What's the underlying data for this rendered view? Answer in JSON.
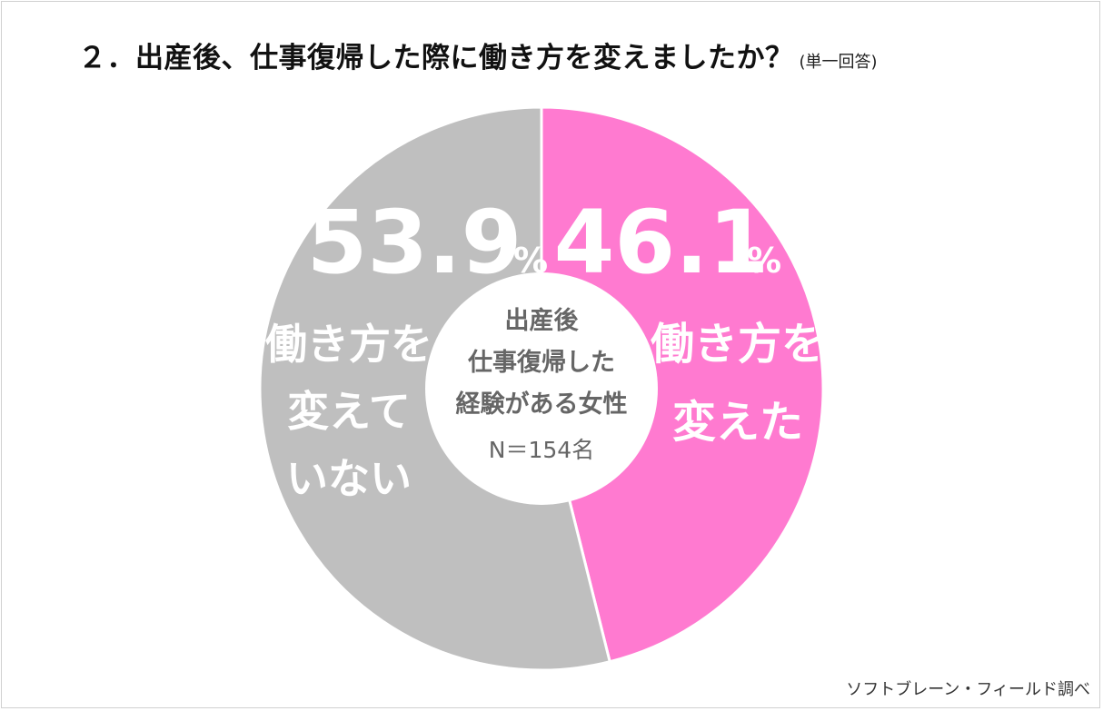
{
  "title": {
    "main": "２．出産後、仕事復帰した際に働き方を変えましたか？",
    "note": "(単一回答)"
  },
  "credit": "ソフトブレーン・フィールド調べ",
  "chart_data": {
    "type": "pie",
    "donut": true,
    "slices": [
      {
        "value": 46.1,
        "value_text": "46.1",
        "unit": "%",
        "label_lines": [
          "働き方を",
          "変えた"
        ],
        "color": "#ff7ad0"
      },
      {
        "value": 53.9,
        "value_text": "53.9",
        "unit": "%",
        "label_lines": [
          "働き方を",
          "変えて",
          "いない"
        ],
        "color": "#bfbfbf"
      }
    ],
    "center": {
      "lines": [
        "出産後",
        "仕事復帰した",
        "経験がある女性"
      ],
      "n_text": "N＝154名"
    }
  }
}
